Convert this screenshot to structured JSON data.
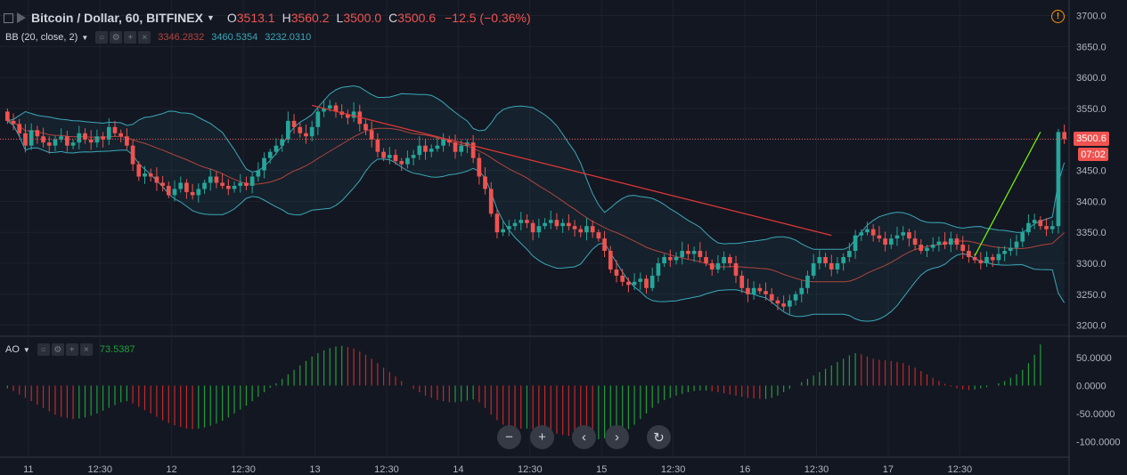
{
  "header": {
    "title": "Bitcoin / Dollar, 60, BITFINEX",
    "o_label": "O",
    "o_value": "3513.1",
    "h_label": "H",
    "h_value": "3560.2",
    "l_label": "L",
    "l_value": "3500.0",
    "c_label": "C",
    "c_value": "3500.6",
    "change": "−12.5 (−0.36%)"
  },
  "bb": {
    "name": "BB (20, close, 2)",
    "basis": "3346.2832",
    "upper": "3460.5354",
    "lower": "3232.0310",
    "color_basis": "#b2443f",
    "color_bands": "#3ba8b8"
  },
  "ao": {
    "name": "AO",
    "value": "73.5387",
    "color_up": "#26a69a",
    "color_down": "#ef5350"
  },
  "price_label": "3500.6",
  "countdown_label": "07:02",
  "icons": {
    "settings": "gear-icon",
    "add": "plus-icon",
    "remove": "close-icon",
    "hide": "eye-icon",
    "zoom_out": "minus-icon",
    "zoom_in": "plus-icon",
    "left": "chevron-left-icon",
    "right": "chevron-right-icon",
    "reset": "reset-icon",
    "warning": "warning-icon"
  },
  "nav_glyphs": {
    "zoom_out": "−",
    "zoom_in": "+",
    "left": "‹",
    "right": "›",
    "reset": "↻"
  },
  "chart_data": [
    {
      "type": "candlestick",
      "title": "Bitcoin / Dollar, 60, BITFINEX",
      "y_ticks": [
        "3700.0",
        "3650.0",
        "3600.0",
        "3550.0",
        "3500.0",
        "3450.0",
        "3400.0",
        "3350.0",
        "3300.0",
        "3250.0",
        "3200.0"
      ],
      "ylim": [
        3185,
        3718
      ],
      "x_ticks": [
        {
          "label": "11",
          "pos": 4
        },
        {
          "label": "12:30",
          "pos": 16
        },
        {
          "label": "12",
          "pos": 28
        },
        {
          "label": "12:30",
          "pos": 40
        },
        {
          "label": "13",
          "pos": 52
        },
        {
          "label": "12:30",
          "pos": 64
        },
        {
          "label": "14",
          "pos": 76
        },
        {
          "label": "12:30",
          "pos": 88
        },
        {
          "label": "15",
          "pos": 100
        },
        {
          "label": "12:30",
          "pos": 112
        },
        {
          "label": "16",
          "pos": 124
        },
        {
          "label": "12:30",
          "pos": 136
        },
        {
          "label": "17",
          "pos": 148
        },
        {
          "label": "12:30",
          "pos": 160
        }
      ],
      "closes": [
        3530,
        3525,
        3510,
        3490,
        3515,
        3505,
        3495,
        3490,
        3500,
        3505,
        3490,
        3495,
        3510,
        3500,
        3495,
        3505,
        3500,
        3520,
        3510,
        3505,
        3490,
        3460,
        3440,
        3445,
        3440,
        3430,
        3425,
        3410,
        3420,
        3430,
        3415,
        3410,
        3420,
        3430,
        3440,
        3430,
        3425,
        3420,
        3425,
        3430,
        3425,
        3440,
        3450,
        3470,
        3480,
        3490,
        3500,
        3530,
        3520,
        3510,
        3505,
        3520,
        3545,
        3550,
        3555,
        3545,
        3540,
        3535,
        3545,
        3525,
        3515,
        3500,
        3480,
        3470,
        3475,
        3465,
        3460,
        3470,
        3475,
        3490,
        3480,
        3485,
        3490,
        3500,
        3495,
        3480,
        3490,
        3495,
        3470,
        3440,
        3420,
        3380,
        3350,
        3355,
        3360,
        3365,
        3370,
        3365,
        3350,
        3360,
        3365,
        3370,
        3360,
        3365,
        3360,
        3355,
        3350,
        3360,
        3350,
        3340,
        3320,
        3290,
        3280,
        3270,
        3265,
        3270,
        3275,
        3260,
        3280,
        3300,
        3310,
        3305,
        3310,
        3320,
        3315,
        3320,
        3310,
        3300,
        3290,
        3300,
        3310,
        3300,
        3280,
        3260,
        3250,
        3260,
        3255,
        3250,
        3240,
        3235,
        3230,
        3240,
        3250,
        3260,
        3280,
        3300,
        3310,
        3300,
        3290,
        3300,
        3310,
        3320,
        3345,
        3350,
        3355,
        3345,
        3340,
        3330,
        3340,
        3345,
        3350,
        3340,
        3330,
        3320,
        3325,
        3330,
        3335,
        3330,
        3340,
        3330,
        3320,
        3310,
        3305,
        3300,
        3310,
        3305,
        3315,
        3320,
        3325,
        3335,
        3350,
        3365,
        3370,
        3360,
        3355,
        3360,
        3512,
        3500.6
      ],
      "ao_values": [
        -5,
        -10,
        -16,
        -22,
        -28,
        -34,
        -40,
        -46,
        -52,
        -56,
        -58,
        -60,
        -59,
        -57,
        -54,
        -50,
        -45,
        -40,
        -35,
        -30,
        -28,
        -32,
        -38,
        -44,
        -50,
        -56,
        -62,
        -67,
        -71,
        -74,
        -77,
        -78,
        -77,
        -75,
        -72,
        -68,
        -63,
        -57,
        -50,
        -43,
        -36,
        -28,
        -20,
        -12,
        -4,
        4,
        12,
        20,
        28,
        36,
        44,
        52,
        58,
        63,
        67,
        70,
        71,
        69,
        66,
        61,
        55,
        48,
        40,
        32,
        24,
        16,
        8,
        0,
        -6,
        -12,
        -18,
        -22,
        -26,
        -28,
        -30,
        -30,
        -29,
        -27,
        -25,
        -30,
        -40,
        -52,
        -62,
        -70,
        -74,
        -76,
        -77,
        -77,
        -78,
        -80,
        -82,
        -84,
        -86,
        -88,
        -90,
        -92,
        -94,
        -96,
        -97,
        -96,
        -94,
        -91,
        -88,
        -84,
        -78,
        -70,
        -60,
        -50,
        -40,
        -32,
        -26,
        -22,
        -18,
        -15,
        -12,
        -10,
        -9,
        -9,
        -10,
        -12,
        -14,
        -16,
        -18,
        -20,
        -22,
        -23,
        -24,
        -24,
        -22,
        -18,
        -12,
        -6,
        0,
        6,
        12,
        18,
        24,
        30,
        36,
        42,
        48,
        54,
        58,
        56,
        52,
        48,
        46,
        45,
        44,
        42,
        40,
        36,
        32,
        26,
        20,
        14,
        8,
        3,
        -2,
        -5,
        -7,
        -8,
        -7,
        -5,
        -3,
        0,
        4,
        8,
        14,
        20,
        28,
        40,
        55,
        73.5387
      ]
    }
  ]
}
